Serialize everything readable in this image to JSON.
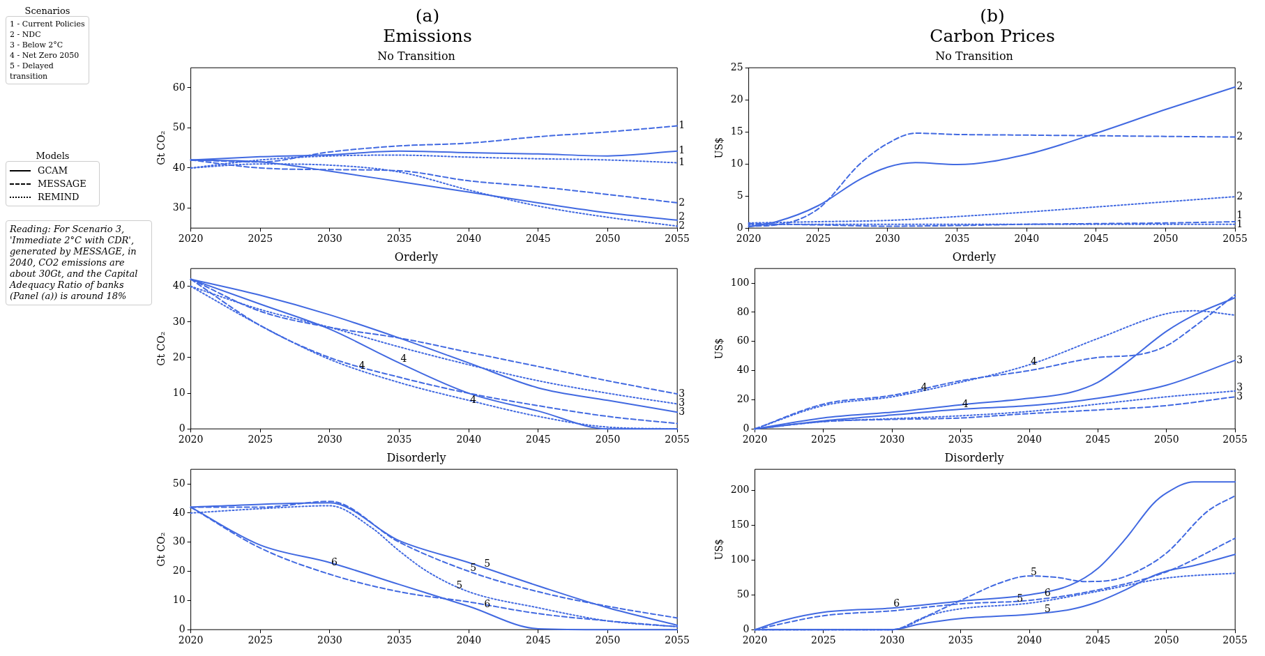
{
  "chart_data": [
    {
      "type": "other",
      "legend_title": "Scenarios",
      "annotations": [
        "1 - Current Policies",
        "2 - NDC",
        "3 - Below 2°C",
        "4 - Net Zero 2050",
        "5 - Delayed transition"
      ]
    },
    {
      "type": "other",
      "legend_title": "Models",
      "series": [
        {
          "name": "GCAM",
          "color": "#000000",
          "line_style": "solid"
        },
        {
          "name": "MESSAGE",
          "color": "#000000",
          "line_style": "dashed"
        },
        {
          "name": "REMIND",
          "color": "#000000",
          "line_style": "dotted"
        }
      ]
    },
    {
      "type": "other",
      "annotations": [
        "Reading: For Scenario 3, 'Immediate 2°C with CDR', generated by MESSAGE, in 2040, CO2 emissions are about 30Gt, and the Capital Adequacy Ratio of banks (Panel (a)) is around 18%"
      ]
    },
    {
      "type": "other",
      "title": "(a)",
      "subtitle": "Emissions"
    },
    {
      "type": "other",
      "title": "(b)",
      "subtitle": "Carbon Prices"
    },
    {
      "type": "line",
      "title": "No Transition",
      "ylabel": "Gt CO₂",
      "x": [
        2020,
        2025,
        2030,
        2035,
        2040,
        2045,
        2050,
        2055
      ],
      "xlim": [
        2020,
        2055
      ],
      "xticks": [
        2020,
        2025,
        2030,
        2035,
        2040,
        2045,
        2050,
        2055
      ],
      "ylim": [
        25,
        65
      ],
      "yticks": [
        30,
        40,
        50,
        60
      ],
      "series": [
        {
          "color": "#4169e1",
          "line_style": "solid",
          "values": [
            42,
            42.8,
            43.3,
            44.2,
            43.8,
            43.5,
            43.0,
            44.2
          ]
        },
        {
          "color": "#4169e1",
          "line_style": "dashed",
          "values": [
            42,
            41.5,
            44,
            45.5,
            46.2,
            47.8,
            49.0,
            50.5
          ]
        },
        {
          "color": "#4169e1",
          "line_style": "dotted",
          "values": [
            40,
            42,
            43,
            43.2,
            42.7,
            42.3,
            42,
            41.3
          ]
        },
        {
          "color": "#4169e1",
          "line_style": "solid",
          "values": [
            42,
            41.5,
            39.2,
            36.6,
            34,
            31.3,
            28.8,
            27.0
          ]
        },
        {
          "color": "#4169e1",
          "line_style": "dashed",
          "values": [
            42,
            40,
            39.6,
            39.3,
            36.8,
            35.3,
            33.4,
            31.3
          ]
        },
        {
          "color": "#4169e1",
          "line_style": "dotted",
          "values": [
            40,
            41,
            40.7,
            39,
            34.5,
            30.5,
            27.7,
            25.5
          ]
        }
      ],
      "annotations": [
        {
          "text": "1",
          "x": 2055,
          "y": 50.5
        },
        {
          "text": "1",
          "x": 2055,
          "y": 44.2
        },
        {
          "text": "1",
          "x": 2055,
          "y": 41.3
        },
        {
          "text": "2",
          "x": 2055,
          "y": 31.3
        },
        {
          "text": "2",
          "x": 2055,
          "y": 27.0
        },
        {
          "text": "2",
          "x": 2055,
          "y": 25.5
        }
      ]
    },
    {
      "type": "line",
      "title": "No Transition",
      "ylabel": "US$",
      "x": [
        2020,
        2025,
        2030,
        2035,
        2040,
        2045,
        2050,
        2055
      ],
      "xlim": [
        2020,
        2055
      ],
      "xticks": [
        2020,
        2025,
        2030,
        2035,
        2040,
        2045,
        2050,
        2055
      ],
      "ylim": [
        0,
        25
      ],
      "yticks": [
        0,
        5,
        10,
        15,
        20,
        25
      ],
      "series": [
        {
          "color": "#4169e1",
          "line_style": "solid",
          "x": [
            2020,
            2022,
            2025,
            2028,
            2030,
            2032,
            2035,
            2040,
            2045,
            2050,
            2055
          ],
          "values": [
            0.2,
            1,
            3.5,
            7.6,
            9.5,
            10.2,
            9.9,
            11.5,
            14.8,
            18.5,
            22
          ]
        },
        {
          "color": "#4169e1",
          "line_style": "dashed",
          "x": [
            2020,
            2022,
            2025,
            2028,
            2030,
            2032,
            2035,
            2040,
            2045,
            2050,
            2055
          ],
          "values": [
            0.3,
            0.5,
            3,
            10,
            13.2,
            14.8,
            14.6,
            14.5,
            14.4,
            14.3,
            14.2
          ]
        },
        {
          "color": "#4169e1",
          "line_style": "dotted",
          "values": [
            0.8,
            1.0,
            1.2,
            1.8,
            2.5,
            3.3,
            4.1,
            4.9
          ]
        },
        {
          "color": "#4169e1",
          "line_style": "dashed",
          "values": [
            0.7,
            0.5,
            0.3,
            0.4,
            0.6,
            0.7,
            0.8,
            1.0
          ]
        },
        {
          "color": "#4169e1",
          "line_style": "dotted",
          "values": [
            0.5,
            0.6,
            0.6,
            0.6,
            0.6,
            0.6,
            0.6,
            0.6
          ]
        }
      ],
      "annotations": [
        {
          "text": "2",
          "x": 2055,
          "y": 22
        },
        {
          "text": "2",
          "x": 2055,
          "y": 14.2
        },
        {
          "text": "2",
          "x": 2055,
          "y": 4.9
        },
        {
          "text": "1",
          "x": 2055,
          "y": 1.0
        },
        {
          "text": "1",
          "x": 2055,
          "y": 0.5
        }
      ]
    },
    {
      "type": "line",
      "title": "Orderly",
      "ylabel": "Gt CO₂",
      "x": [
        2020,
        2025,
        2030,
        2035,
        2040,
        2045,
        2050,
        2055
      ],
      "xlim": [
        2020,
        2055
      ],
      "xticks": [
        2020,
        2025,
        2030,
        2035,
        2040,
        2045,
        2050,
        2055
      ],
      "ylim": [
        0,
        45
      ],
      "yticks": [
        0,
        10,
        20,
        30,
        40
      ],
      "series": [
        {
          "color": "#4169e1",
          "line_style": "solid",
          "values": [
            42,
            37.5,
            32,
            25.5,
            18.5,
            11.5,
            8,
            4.7
          ]
        },
        {
          "color": "#4169e1",
          "line_style": "dashed",
          "values": [
            42,
            33,
            28.5,
            25.5,
            21.5,
            17.5,
            13.5,
            9.8
          ]
        },
        {
          "color": "#4169e1",
          "line_style": "dotted",
          "values": [
            40,
            33.5,
            28.5,
            23,
            18,
            13.5,
            10,
            7
          ]
        },
        {
          "color": "#4169e1",
          "line_style": "solid",
          "values": [
            42,
            35,
            28,
            18.5,
            10,
            5,
            0,
            0
          ]
        },
        {
          "color": "#4169e1",
          "line_style": "dashed",
          "values": [
            42,
            29,
            20,
            14.5,
            10,
            6.5,
            3.5,
            1.5
          ]
        },
        {
          "color": "#4169e1",
          "line_style": "dotted",
          "values": [
            40,
            29,
            19.5,
            13,
            8,
            3.5,
            0.5,
            0
          ]
        }
      ],
      "annotations": [
        {
          "text": "4",
          "x": 2032,
          "y": 17.5
        },
        {
          "text": "4",
          "x": 2035,
          "y": 19.5
        },
        {
          "text": "4",
          "x": 2040,
          "y": 8
        },
        {
          "text": "3",
          "x": 2055,
          "y": 9.8
        },
        {
          "text": "3",
          "x": 2055,
          "y": 7
        },
        {
          "text": "3",
          "x": 2055,
          "y": 4.7
        }
      ]
    },
    {
      "type": "line",
      "title": "Orderly",
      "ylabel": "US$",
      "x": [
        2020,
        2025,
        2030,
        2035,
        2040,
        2045,
        2050,
        2055
      ],
      "xlim": [
        2020,
        2055
      ],
      "xticks": [
        2020,
        2025,
        2030,
        2035,
        2040,
        2045,
        2050,
        2055
      ],
      "ylim": [
        0,
        110
      ],
      "yticks": [
        0,
        20,
        40,
        60,
        80,
        100
      ],
      "series": [
        {
          "color": "#4169e1",
          "line_style": "solid",
          "x": [
            2020,
            2025,
            2030,
            2035,
            2040,
            2043,
            2045,
            2047,
            2050,
            2052,
            2055
          ],
          "values": [
            0,
            7.5,
            11.5,
            16.5,
            21,
            25,
            32,
            45,
            67,
            78,
            90
          ]
        },
        {
          "color": "#4169e1",
          "line_style": "dashed",
          "x": [
            2020,
            2025,
            2030,
            2035,
            2040,
            2045,
            2048,
            2050,
            2052,
            2055
          ],
          "values": [
            0,
            17,
            23,
            33,
            40,
            49,
            51,
            57,
            70,
            92
          ]
        },
        {
          "color": "#4169e1",
          "line_style": "dotted",
          "x": [
            2020,
            2025,
            2030,
            2035,
            2040,
            2045,
            2050,
            2052,
            2055
          ],
          "values": [
            0,
            16,
            22,
            32,
            44,
            62,
            79,
            81,
            78
          ]
        },
        {
          "color": "#4169e1",
          "line_style": "solid",
          "values": [
            0,
            5.5,
            9.5,
            13.5,
            16,
            21,
            30,
            47
          ]
        },
        {
          "color": "#4169e1",
          "line_style": "dashed",
          "values": [
            0,
            5,
            6.5,
            7.5,
            10.5,
            13,
            16,
            22
          ]
        },
        {
          "color": "#4169e1",
          "line_style": "dotted",
          "values": [
            0,
            5,
            7,
            9,
            12,
            17,
            22,
            26
          ]
        }
      ],
      "annotations": [
        {
          "text": "4",
          "x": 2032,
          "y": 28
        },
        {
          "text": "4",
          "x": 2035,
          "y": 16.5
        },
        {
          "text": "4",
          "x": 2040,
          "y": 46
        },
        {
          "text": "3",
          "x": 2055,
          "y": 47
        },
        {
          "text": "3",
          "x": 2055,
          "y": 26
        },
        {
          "text": "3",
          "x": 2055,
          "y": 22
        }
      ]
    },
    {
      "type": "line",
      "title": "Disorderly",
      "ylabel": "Gt CO₂",
      "x": [
        2020,
        2025,
        2030,
        2035,
        2040,
        2045,
        2050,
        2055
      ],
      "xlim": [
        2020,
        2055
      ],
      "xticks": [
        2020,
        2025,
        2030,
        2035,
        2040,
        2045,
        2050,
        2055
      ],
      "ylim": [
        0,
        55
      ],
      "yticks": [
        0,
        10,
        20,
        30,
        40,
        50
      ],
      "series": [
        {
          "color": "#4169e1",
          "line_style": "solid",
          "values": [
            42,
            43,
            43.5,
            30.5,
            23,
            15,
            7.5,
            1.5
          ]
        },
        {
          "color": "#4169e1",
          "line_style": "dashed",
          "values": [
            42,
            42,
            44,
            30,
            20,
            13,
            8,
            4
          ]
        },
        {
          "color": "#4169e1",
          "line_style": "dotted",
          "x": [
            2020,
            2025,
            2030,
            2033,
            2035,
            2037,
            2040,
            2045,
            2050,
            2055
          ],
          "values": [
            40,
            41.5,
            42.5,
            35,
            27,
            20,
            13,
            7.5,
            3,
            1
          ]
        },
        {
          "color": "#4169e1",
          "line_style": "solid",
          "values": [
            42,
            29,
            23,
            15.5,
            8,
            0.3,
            0,
            0
          ]
        },
        {
          "color": "#4169e1",
          "line_style": "dashed",
          "values": [
            42,
            28,
            19,
            13,
            9.5,
            5.5,
            3,
            1
          ]
        }
      ],
      "annotations": [
        {
          "text": "6",
          "x": 2030,
          "y": 23
        },
        {
          "text": "6",
          "x": 2041,
          "y": 8.5
        },
        {
          "text": "5",
          "x": 2040,
          "y": 21
        },
        {
          "text": "5",
          "x": 2041,
          "y": 22.5
        },
        {
          "text": "5",
          "x": 2039,
          "y": 15
        }
      ]
    },
    {
      "type": "line",
      "title": "Disorderly",
      "ylabel": "US$",
      "x": [
        2020,
        2025,
        2030,
        2035,
        2040,
        2045,
        2050,
        2055
      ],
      "xlim": [
        2020,
        2055
      ],
      "xticks": [
        2020,
        2025,
        2030,
        2035,
        2040,
        2045,
        2050,
        2055
      ],
      "ylim": [
        0,
        230
      ],
      "yticks": [
        0,
        50,
        100,
        150,
        200
      ],
      "series": [
        {
          "color": "#4169e1",
          "line_style": "solid",
          "x": [
            2020,
            2022,
            2025,
            2030,
            2035,
            2040,
            2043,
            2045,
            2047,
            2049,
            2050,
            2052,
            2055
          ],
          "values": [
            0,
            13,
            25,
            31,
            41,
            50,
            64,
            88,
            130,
            180,
            196,
            212,
            212
          ]
        },
        {
          "color": "#4169e1",
          "line_style": "dashed",
          "values": [
            0,
            20,
            27,
            37,
            42,
            57,
            83,
            131
          ]
        },
        {
          "color": "#4169e1",
          "line_style": "dashed",
          "x": [
            2020,
            2030,
            2032,
            2035,
            2038,
            2040,
            2042,
            2044,
            2046,
            2048,
            2050,
            2053,
            2055
          ],
          "values": [
            0,
            0,
            15,
            42,
            68,
            77,
            75,
            69,
            71,
            85,
            110,
            170,
            192
          ]
        },
        {
          "color": "#4169e1",
          "line_style": "solid",
          "x": [
            2020,
            2030,
            2032,
            2035,
            2040,
            2043,
            2045,
            2047,
            2049,
            2050,
            2052,
            2055
          ],
          "values": [
            0,
            0,
            8,
            16,
            22,
            29,
            40,
            57,
            77,
            84,
            92,
            108
          ]
        },
        {
          "color": "#4169e1",
          "line_style": "dotted",
          "x": [
            2020,
            2030,
            2033,
            2035,
            2040,
            2045,
            2050,
            2055
          ],
          "values": [
            0,
            0,
            22,
            30,
            38,
            55,
            74,
            81
          ]
        }
      ],
      "annotations": [
        {
          "text": "6",
          "x": 2030,
          "y": 37
        },
        {
          "text": "6",
          "x": 2041,
          "y": 52
        },
        {
          "text": "5",
          "x": 2040,
          "y": 82
        },
        {
          "text": "5",
          "x": 2039,
          "y": 44
        },
        {
          "text": "5",
          "x": 2041,
          "y": 29
        }
      ]
    }
  ]
}
